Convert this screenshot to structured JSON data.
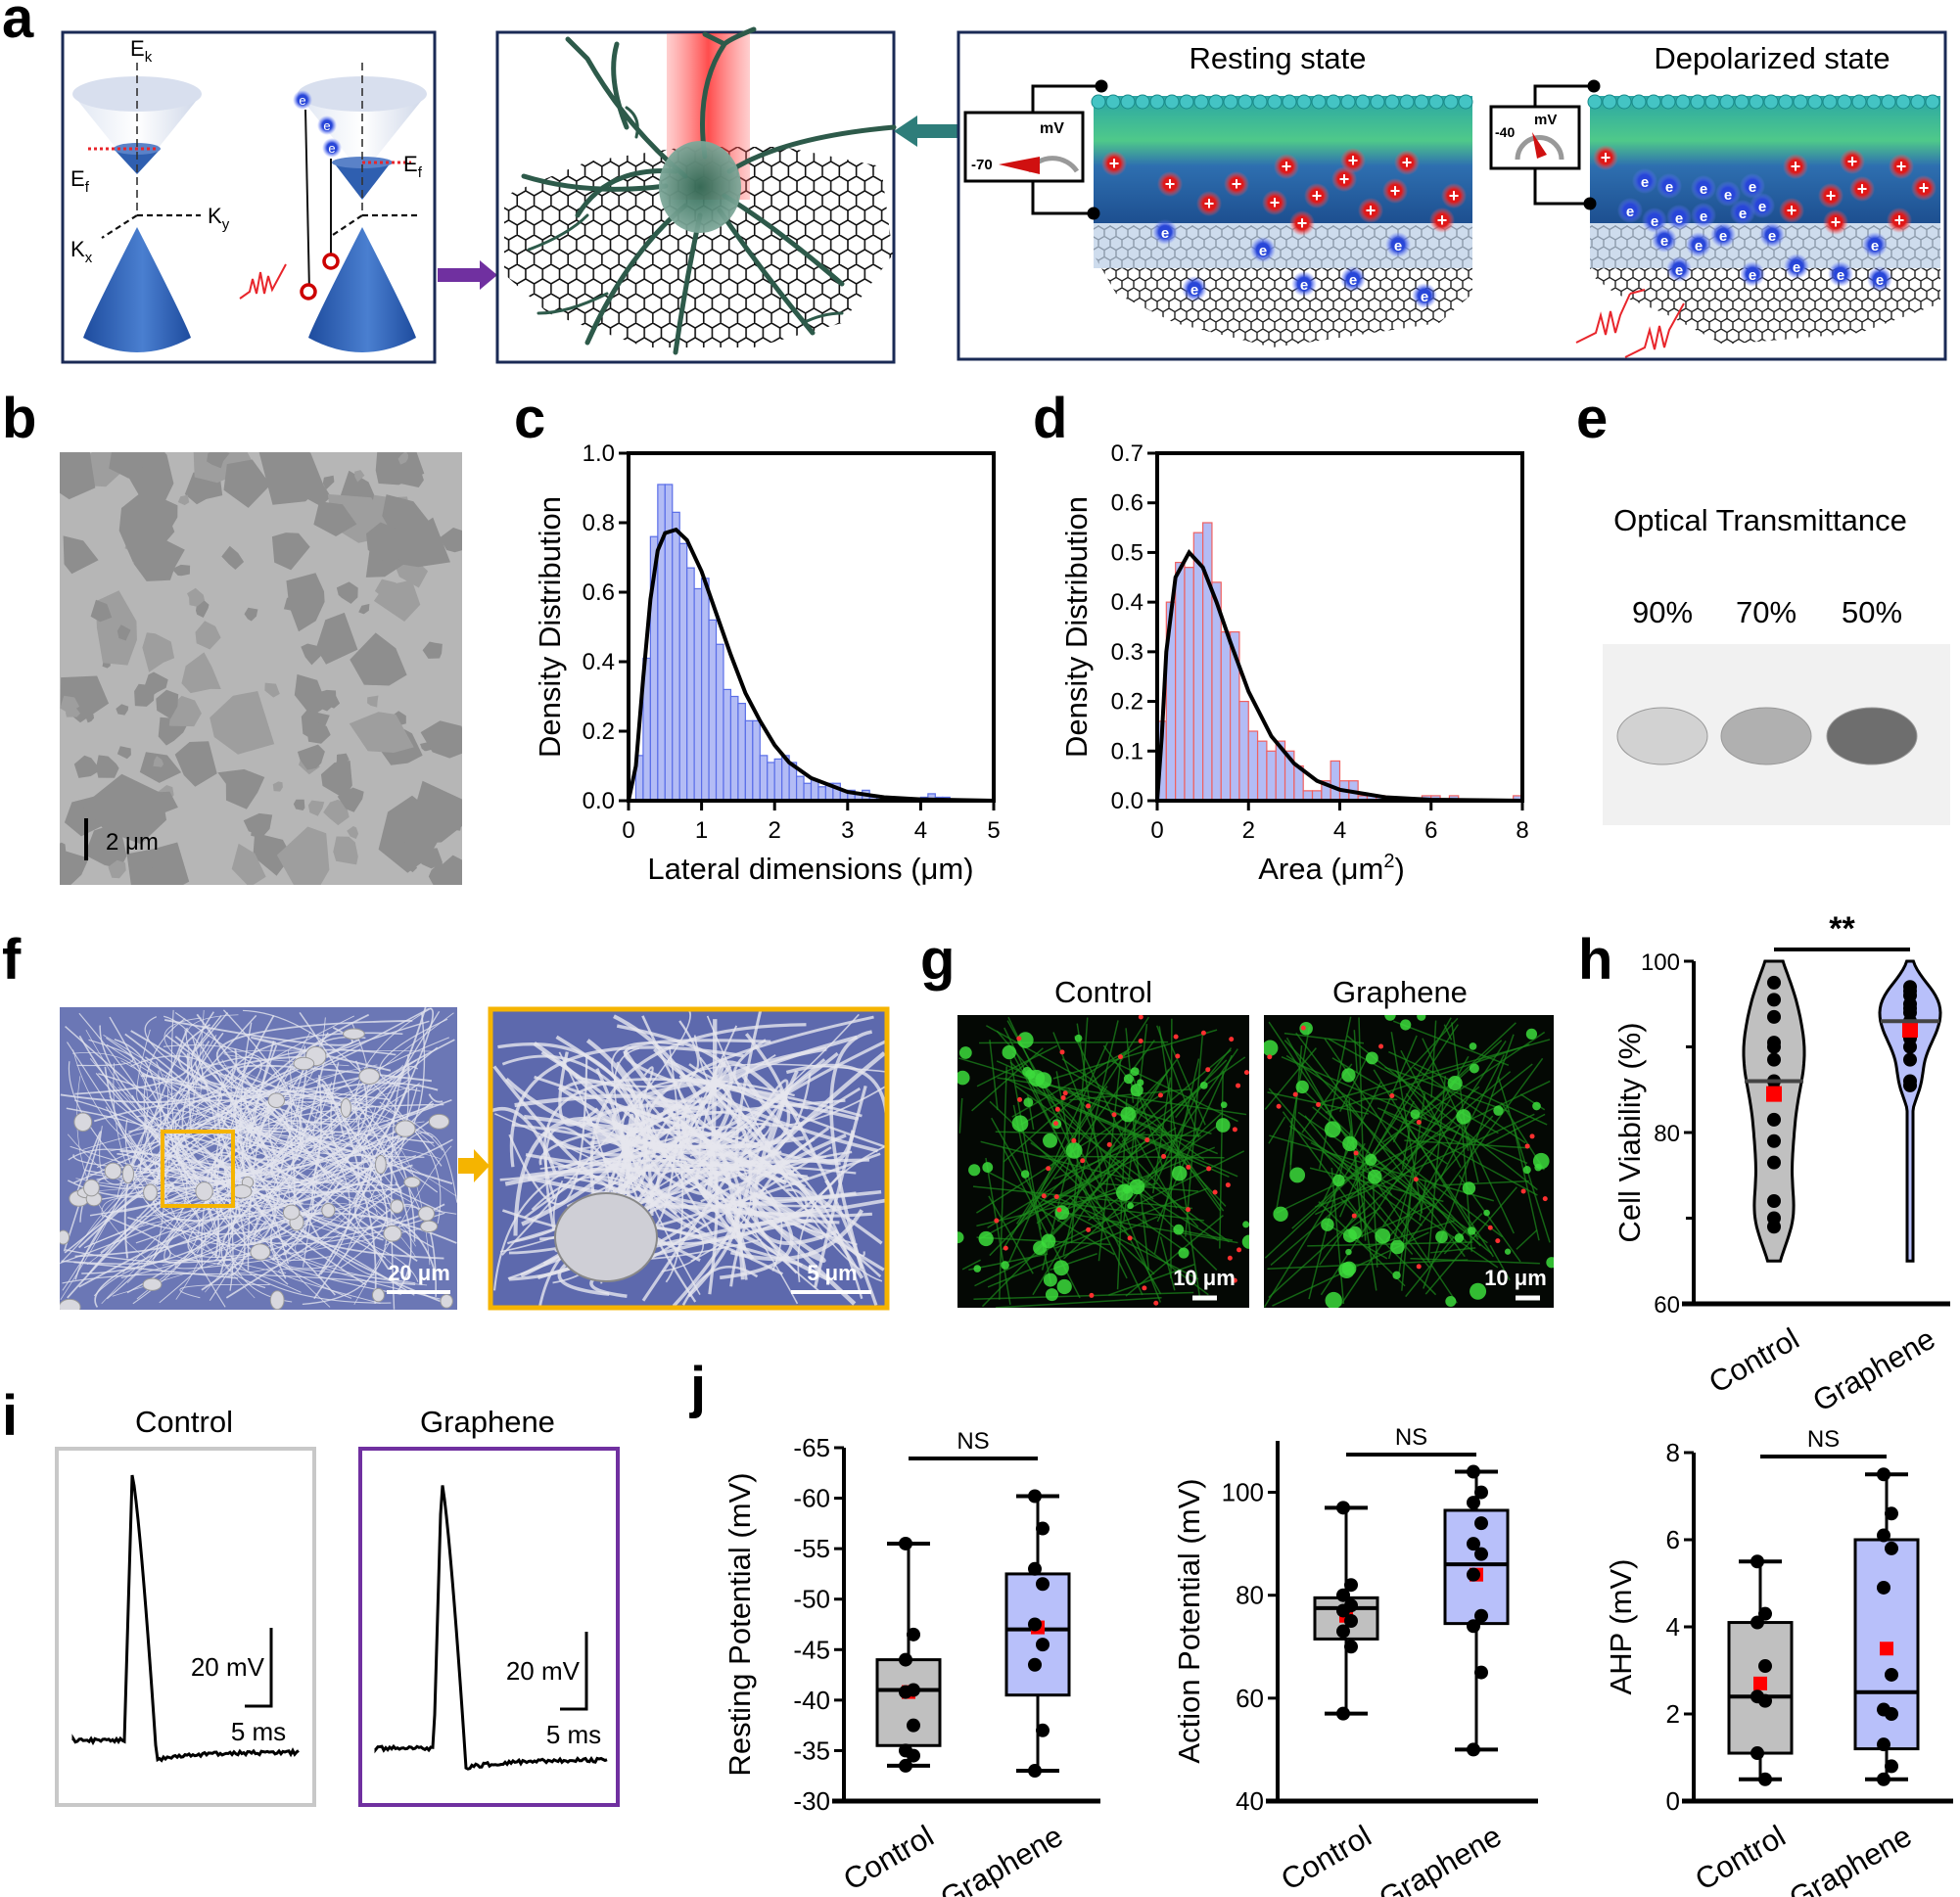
{
  "panel_labels": {
    "a": "a",
    "b": "b",
    "c": "c",
    "d": "d",
    "e": "e",
    "f": "f",
    "g": "g",
    "h": "h",
    "i": "i",
    "j": "j"
  },
  "panel_a": {
    "ek": "E",
    "ek_sub": "k",
    "ef": "E",
    "ef_sub": "f",
    "kx": "K",
    "kx_sub": "x",
    "ky": "K",
    "ky_sub": "y",
    "electron": "e",
    "cation": "+",
    "resting_title": "Resting state",
    "depolarized_title": "Depolarized state",
    "meter_unit": "mV",
    "resting_value": "-70",
    "depolarized_value": "-40",
    "colors": {
      "cone": "#2f5fb0",
      "laser": "#e8252b",
      "neuron": "#2d5a4a",
      "arrow_purple": "#7030a0",
      "arrow_teal": "#2e7d7a",
      "electron": "#2040d0",
      "cation": "#e02020"
    }
  },
  "panel_b": {
    "scale_bar": "2 μm"
  },
  "panel_e": {
    "title": "Optical Transmittance",
    "samples": [
      {
        "label": "90%",
        "gray": "#d2d2d2"
      },
      {
        "label": "70%",
        "gray": "#b0b0b0"
      },
      {
        "label": "50%",
        "gray": "#6e6e6e"
      }
    ]
  },
  "panel_f": {
    "scale_left": "20 μm",
    "scale_right": "5 μm",
    "highlight_color": "#f5b400"
  },
  "panel_g": {
    "titles": [
      "Control",
      "Graphene"
    ],
    "scale": "10 μm"
  },
  "panel_i": {
    "titles": [
      "Control",
      "Graphene"
    ],
    "scale_v": "20 mV",
    "scale_t": "5 ms",
    "frame_colors": [
      "#c8c8c8",
      "#7030a0"
    ]
  },
  "chart_data": [
    {
      "panel": "c",
      "type": "histogram",
      "xlabel": "Lateral dimensions (μm)",
      "ylabel": "Density Distribution",
      "xlim": [
        0,
        5
      ],
      "ylim": [
        0,
        1.0
      ],
      "xticks": [
        "0",
        "1",
        "2",
        "3",
        "4",
        "5"
      ],
      "yticks": [
        "0.0",
        "0.2",
        "0.4",
        "0.6",
        "0.8",
        "1.0"
      ],
      "bin_width": 0.1,
      "fill": "#b3bcf5",
      "edge": "#5a6ee8",
      "bins": [
        [
          0.1,
          0.13
        ],
        [
          0.2,
          0.41
        ],
        [
          0.3,
          0.76
        ],
        [
          0.4,
          0.91
        ],
        [
          0.5,
          0.91
        ],
        [
          0.6,
          0.83
        ],
        [
          0.7,
          0.74
        ],
        [
          0.8,
          0.67
        ],
        [
          0.9,
          0.61
        ],
        [
          1.0,
          0.64
        ],
        [
          1.1,
          0.52
        ],
        [
          1.2,
          0.45
        ],
        [
          1.3,
          0.32
        ],
        [
          1.4,
          0.3
        ],
        [
          1.5,
          0.28
        ],
        [
          1.6,
          0.23
        ],
        [
          1.7,
          0.23
        ],
        [
          1.8,
          0.13
        ],
        [
          1.9,
          0.11
        ],
        [
          2.0,
          0.12
        ],
        [
          2.1,
          0.13
        ],
        [
          2.2,
          0.11
        ],
        [
          2.3,
          0.07
        ],
        [
          2.4,
          0.05
        ],
        [
          2.5,
          0.06
        ],
        [
          2.6,
          0.04
        ],
        [
          2.7,
          0.05
        ],
        [
          2.8,
          0.05
        ],
        [
          2.9,
          0.03
        ],
        [
          3.0,
          0.03
        ],
        [
          3.1,
          0.02
        ],
        [
          3.2,
          0.03
        ],
        [
          3.3,
          0.01
        ],
        [
          3.4,
          0.01
        ],
        [
          3.5,
          0.01
        ],
        [
          3.6,
          0.005
        ],
        [
          3.9,
          0.005
        ],
        [
          4.0,
          0.01
        ],
        [
          4.1,
          0.02
        ],
        [
          4.2,
          0.01
        ],
        [
          4.3,
          0.01
        ]
      ],
      "fit_curve": [
        [
          0,
          0
        ],
        [
          0.1,
          0.1
        ],
        [
          0.2,
          0.35
        ],
        [
          0.3,
          0.58
        ],
        [
          0.4,
          0.72
        ],
        [
          0.5,
          0.77
        ],
        [
          0.65,
          0.78
        ],
        [
          0.8,
          0.75
        ],
        [
          1.0,
          0.66
        ],
        [
          1.2,
          0.54
        ],
        [
          1.4,
          0.42
        ],
        [
          1.6,
          0.31
        ],
        [
          1.8,
          0.23
        ],
        [
          2.0,
          0.16
        ],
        [
          2.2,
          0.11
        ],
        [
          2.5,
          0.065
        ],
        [
          3.0,
          0.025
        ],
        [
          3.5,
          0.01
        ],
        [
          4.0,
          0.004
        ],
        [
          5.0,
          0
        ]
      ]
    },
    {
      "panel": "d",
      "type": "histogram",
      "xlabel": "Area (μm",
      "xlabel_sup": "2",
      "xlabel_end": ")",
      "ylabel": "Density Distribution",
      "xlim": [
        0,
        8
      ],
      "ylim": [
        0,
        0.7
      ],
      "xticks": [
        "0",
        "2",
        "4",
        "6",
        "8"
      ],
      "yticks": [
        "0.0",
        "0.1",
        "0.2",
        "0.3",
        "0.4",
        "0.5",
        "0.6",
        "0.7"
      ],
      "bin_width": 0.2,
      "fill": "#b3bcf5",
      "edge": "#f06060",
      "bins": [
        [
          0.0,
          0.16
        ],
        [
          0.2,
          0.4
        ],
        [
          0.4,
          0.48
        ],
        [
          0.6,
          0.47
        ],
        [
          0.8,
          0.54
        ],
        [
          1.0,
          0.56
        ],
        [
          1.2,
          0.44
        ],
        [
          1.4,
          0.34
        ],
        [
          1.6,
          0.34
        ],
        [
          1.8,
          0.2
        ],
        [
          2.0,
          0.14
        ],
        [
          2.2,
          0.12
        ],
        [
          2.4,
          0.1
        ],
        [
          2.6,
          0.12
        ],
        [
          2.8,
          0.1
        ],
        [
          3.0,
          0.07
        ],
        [
          3.2,
          0.02
        ],
        [
          3.4,
          0.02
        ],
        [
          3.6,
          0.04
        ],
        [
          3.8,
          0.08
        ],
        [
          4.0,
          0.04
        ],
        [
          4.2,
          0.04
        ],
        [
          4.4,
          0.01
        ],
        [
          4.6,
          0.01
        ],
        [
          4.8,
          0.01
        ],
        [
          5.8,
          0.01
        ],
        [
          6.0,
          0.01
        ],
        [
          6.4,
          0.01
        ],
        [
          7.8,
          0.01
        ]
      ],
      "fit_curve": [
        [
          0,
          0
        ],
        [
          0.1,
          0.13
        ],
        [
          0.2,
          0.3
        ],
        [
          0.4,
          0.45
        ],
        [
          0.7,
          0.5
        ],
        [
          1.0,
          0.47
        ],
        [
          1.3,
          0.4
        ],
        [
          1.6,
          0.32
        ],
        [
          2.0,
          0.22
        ],
        [
          2.5,
          0.13
        ],
        [
          3.0,
          0.075
        ],
        [
          3.5,
          0.04
        ],
        [
          4.0,
          0.022
        ],
        [
          5.0,
          0.007
        ],
        [
          6.0,
          0.002
        ],
        [
          8.0,
          0
        ]
      ]
    },
    {
      "panel": "h",
      "type": "violin",
      "ylabel": "Cell Viability (%)",
      "ylim": [
        60,
        100
      ],
      "yticks": [
        "60",
        "80",
        "100"
      ],
      "categories": [
        "Control",
        "Graphene"
      ],
      "significance": "**",
      "groups": [
        {
          "name": "Control",
          "fill": "#c0c0c0",
          "range": [
            65,
            100
          ],
          "median": 86,
          "mean": 84.5,
          "points": [
            97.5,
            95.5,
            93.5,
            90.5,
            90,
            88.5,
            86,
            85,
            81.5,
            79,
            76.5,
            72,
            70,
            69
          ]
        },
        {
          "name": "Graphene",
          "fill": "#b8c0fa",
          "range": [
            65,
            100
          ],
          "median": 93,
          "mean": 92,
          "points": [
            97,
            96.5,
            96,
            95,
            94.5,
            94,
            93,
            92.5,
            92,
            91,
            90,
            88.5,
            86,
            85.5
          ]
        }
      ]
    },
    {
      "panel": "j",
      "type": "box",
      "ylabel": "Resting Potential (mV)",
      "ylim": [
        -30,
        -65
      ],
      "yticks": [
        "-30",
        "-35",
        "-40",
        "-45",
        "-50",
        "-55",
        "-60",
        "-65"
      ],
      "ytick_values": [
        -30,
        -35,
        -40,
        -45,
        -50,
        -55,
        -60,
        -65
      ],
      "categories": [
        "Control",
        "Graphene"
      ],
      "significance": "NS",
      "groups": [
        {
          "name": "Control",
          "fill": "#c0c0c0",
          "whisker": [
            -33.5,
            -55.5
          ],
          "box": [
            -35.5,
            -44
          ],
          "median": -41,
          "mean": -40.8,
          "points": [
            -55.5,
            -46.5,
            -44,
            -41,
            -40.8,
            -37.5,
            -35,
            -34.5,
            -33.5
          ]
        },
        {
          "name": "Graphene",
          "fill": "#b8c0fa",
          "whisker": [
            -33,
            -60.2
          ],
          "box": [
            -40.5,
            -52.5
          ],
          "median": -47,
          "mean": -47.2,
          "points": [
            -60.2,
            -57,
            -53,
            -51.5,
            -47.5,
            -45.5,
            -43.5,
            -37,
            -33
          ]
        }
      ]
    },
    {
      "panel": "j",
      "type": "box",
      "ylabel": "Action Potential (mV)",
      "ylim": [
        40,
        110
      ],
      "yticks": [
        "40",
        "60",
        "80",
        "100"
      ],
      "ytick_values": [
        40,
        60,
        80,
        100
      ],
      "categories": [
        "Control",
        "Graphene"
      ],
      "significance": "NS",
      "groups": [
        {
          "name": "Control",
          "fill": "#c0c0c0",
          "whisker": [
            57,
            97
          ],
          "box": [
            71.5,
            79.5
          ],
          "median": 77.5,
          "mean": 76,
          "points": [
            97,
            82,
            80,
            78,
            77,
            75,
            73,
            70,
            57
          ]
        },
        {
          "name": "Graphene",
          "fill": "#b8c0fa",
          "whisker": [
            50,
            104
          ],
          "box": [
            74.5,
            96.5
          ],
          "median": 86,
          "mean": 84,
          "points": [
            104,
            100,
            98,
            94,
            90,
            88,
            84,
            76,
            74,
            65,
            50
          ]
        }
      ]
    },
    {
      "panel": "j",
      "type": "box",
      "ylabel": "AHP (mV)",
      "ylim": [
        0,
        8
      ],
      "yticks": [
        "0",
        "2",
        "4",
        "6",
        "8"
      ],
      "ytick_values": [
        0,
        2,
        4,
        6,
        8
      ],
      "categories": [
        "Control",
        "Graphene"
      ],
      "significance": "NS",
      "groups": [
        {
          "name": "Control",
          "fill": "#c0c0c0",
          "whisker": [
            0.5,
            5.5
          ],
          "box": [
            1.1,
            4.1
          ],
          "median": 2.4,
          "mean": 2.7,
          "points": [
            5.5,
            4.3,
            4.1,
            3.1,
            2.4,
            2.3,
            1.1,
            0.5
          ]
        },
        {
          "name": "Graphene",
          "fill": "#b8c0fa",
          "whisker": [
            0.5,
            7.5
          ],
          "box": [
            1.2,
            6.0
          ],
          "median": 2.5,
          "mean": 3.5,
          "points": [
            7.5,
            6.6,
            6.1,
            5.8,
            4.9,
            2.9,
            2.1,
            2.0,
            1.3,
            0.8,
            0.5
          ]
        }
      ]
    }
  ]
}
